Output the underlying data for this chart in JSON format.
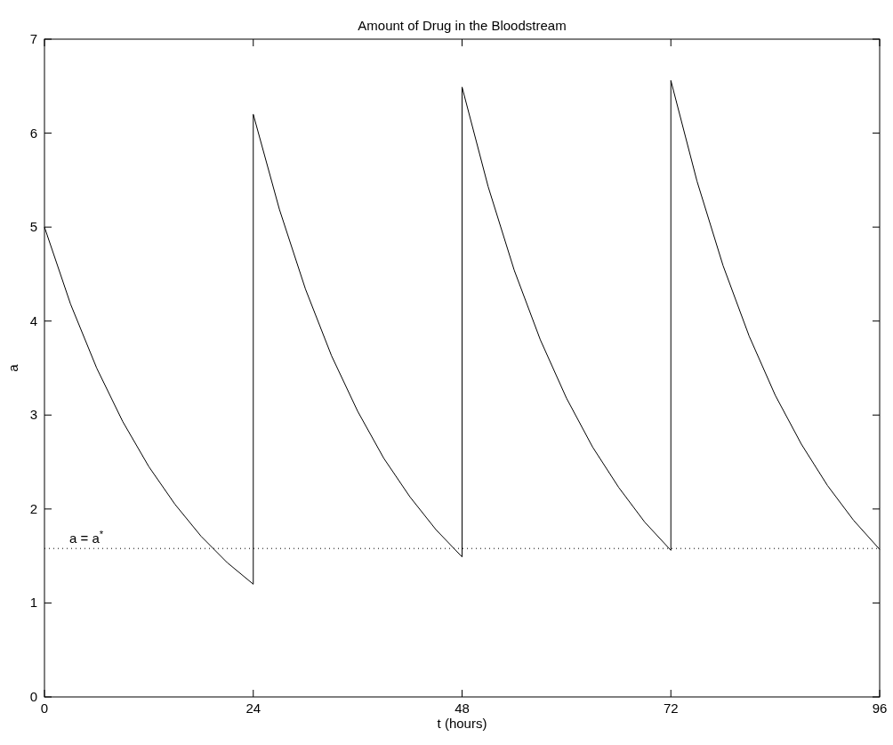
{
  "chart_data": {
    "type": "line",
    "title": "Amount of Drug in the Bloodstream",
    "xlabel": "t  (hours)",
    "ylabel": "a",
    "series": [
      {
        "color": "#000000",
        "x": [
          0,
          3,
          6,
          9,
          12,
          15,
          18,
          21,
          24,
          24,
          27,
          30,
          33,
          36,
          39,
          42,
          45,
          48,
          48,
          51,
          54,
          57,
          60,
          63,
          66,
          69,
          72,
          72,
          75,
          78,
          81,
          84,
          87,
          90,
          93,
          96
        ],
        "values": [
          5,
          4.18,
          3.5,
          2.93,
          2.45,
          2.05,
          1.71,
          1.43,
          1.2,
          6.2,
          5.19,
          4.34,
          3.63,
          3.04,
          2.54,
          2.13,
          1.78,
          1.49,
          6.49,
          5.43,
          4.54,
          3.8,
          3.18,
          2.66,
          2.23,
          1.86,
          1.56,
          6.56,
          5.49,
          4.59,
          3.84,
          3.21,
          2.69,
          2.25,
          1.88,
          1.57
        ]
      }
    ],
    "xlim": [
      0,
      96
    ],
    "xticks": [
      0,
      24,
      48,
      72,
      96
    ],
    "ylim": [
      0,
      7
    ],
    "yticks": [
      0,
      1,
      2,
      3,
      4,
      5,
      6,
      7
    ],
    "ref_lines": [
      {
        "axis": "y",
        "value": 1.58,
        "label": "a = a$^{*}$",
        "color": "#000000",
        "line_style": "dotted"
      }
    ],
    "grid": false,
    "marker": "none",
    "line_style": "solid"
  }
}
